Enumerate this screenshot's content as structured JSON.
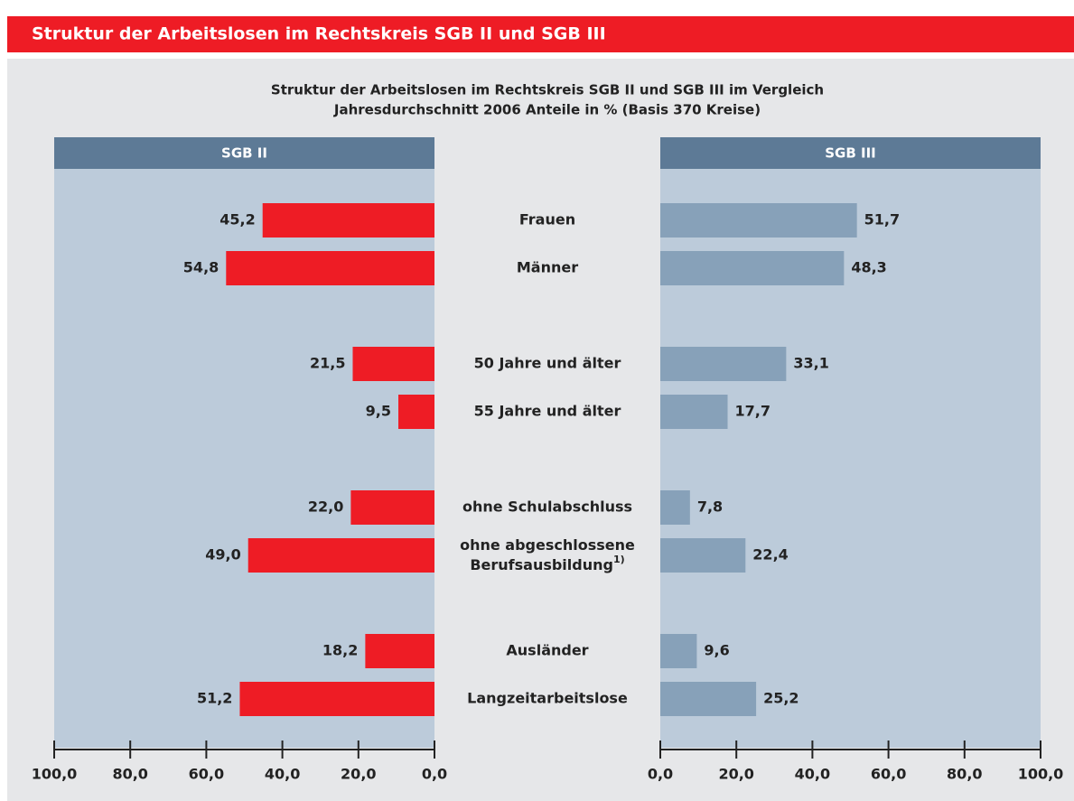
{
  "header": {
    "title": "Struktur der Arbeitslosen im Rechtskreis SGB II und SGB III"
  },
  "chart_data": {
    "type": "butterfly-bar",
    "title": "Struktur der Arbeitslosen im Rechtskreis SGB II und SGB III im Vergleich",
    "subtitle": "Jahresdurchschnitt 2006 Anteile in % (Basis 370 Kreise)",
    "categories": [
      "Frauen",
      "Männer",
      "50 Jahre und älter",
      "55 Jahre und älter",
      "ohne Schulabschluss",
      "ohne abgeschlossene Berufsausbildung",
      "Ausländer",
      "Langzeitarbeitslose"
    ],
    "category_footnotes": [
      null,
      null,
      null,
      null,
      null,
      "1)",
      null,
      null
    ],
    "xlim": [
      0,
      100
    ],
    "xticks": [
      {
        "value": 0,
        "label": "0,0"
      },
      {
        "value": 20,
        "label": "20,0"
      },
      {
        "value": 40,
        "label": "40,0"
      },
      {
        "value": 60,
        "label": "60,0"
      },
      {
        "value": 80,
        "label": "80,0"
      },
      {
        "value": 100,
        "label": "100,0"
      }
    ],
    "series": [
      {
        "name": "SGB II",
        "color": "#ee1c25",
        "side": "left",
        "values": [
          45.2,
          54.8,
          21.5,
          9.5,
          22.0,
          49.0,
          18.2,
          51.2
        ],
        "value_labels": [
          "45,2",
          "54,8",
          "21,5",
          "9,5",
          "22,0",
          "49,0",
          "18,2",
          "51,2"
        ]
      },
      {
        "name": "SGB III",
        "color": "#87a1b9",
        "side": "right",
        "values": [
          51.7,
          48.3,
          33.1,
          17.7,
          7.8,
          22.4,
          9.6,
          25.2
        ],
        "value_labels": [
          "51,7",
          "48,3",
          "33,1",
          "17,7",
          "7,8",
          "22,4",
          "9,6",
          "25,2"
        ]
      }
    ]
  }
}
